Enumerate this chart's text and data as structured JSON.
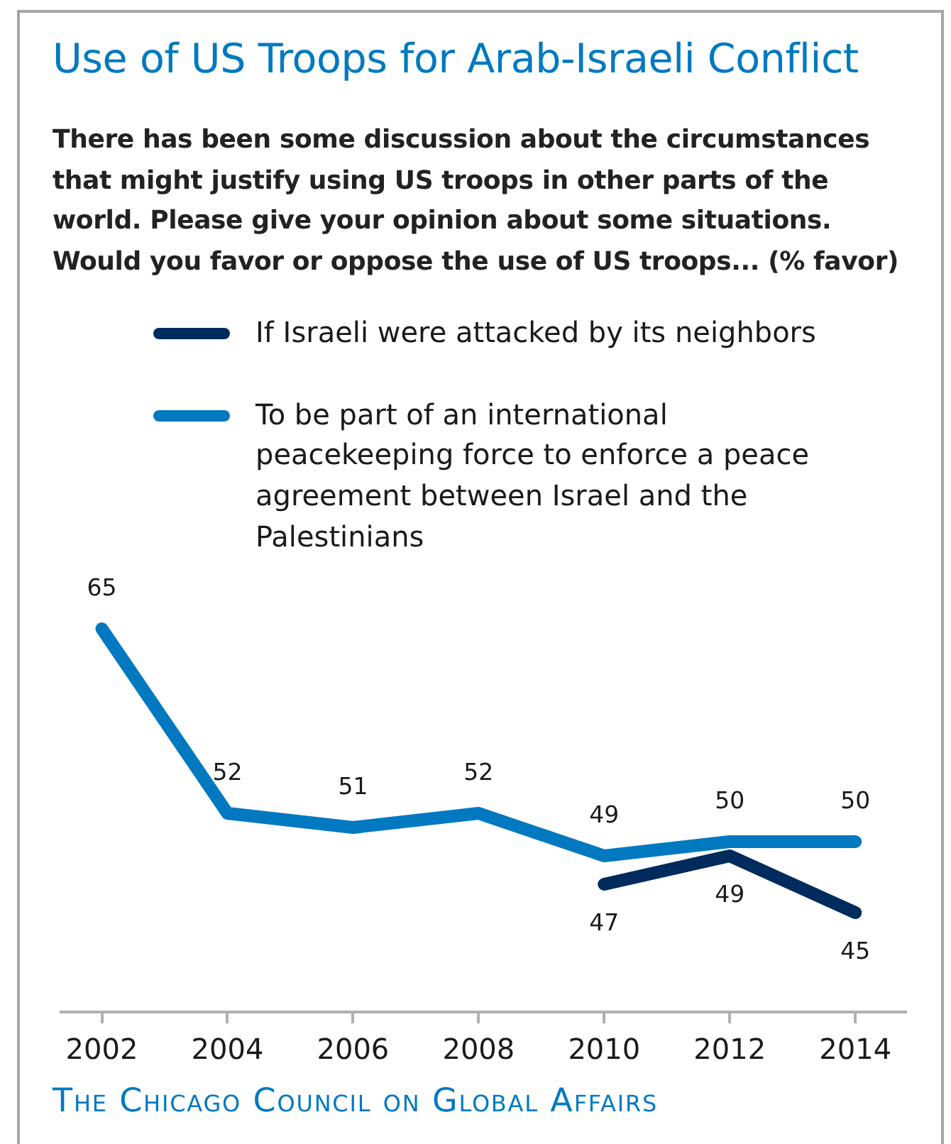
{
  "chart_data": {
    "type": "line",
    "title": "Use of US Troops for Arab-Israeli Conflict",
    "subtitle": "There has been some discussion about the circumstances that might justify using US troops in other parts of the world. Please give your opinion about some situations. Would you favor or oppose the use of US troops... (% favor)",
    "annotations": [
      "The Chicago Council on Global Affairs"
    ],
    "x": [
      2002,
      2004,
      2006,
      2008,
      2010,
      2012,
      2014
    ],
    "xlim": [
      2001.35,
      2014.8
    ],
    "xticks": [
      2002,
      2004,
      2006,
      2008,
      2010,
      2012,
      2014
    ],
    "tick_labels": "x",
    "series": [
      {
        "name": "If Israeli were attacked by its neighbors",
        "color": "#002b5c",
        "values": [
          null,
          null,
          null,
          null,
          47,
          49,
          45
        ]
      },
      {
        "name": "To be part of an international peacekeeping force to enforce a peace agreement between Israel and the Palestinians",
        "color": "#0079c1",
        "values": [
          65,
          52,
          51,
          52,
          49,
          50,
          50
        ]
      }
    ],
    "data_labels": true,
    "legend": "top",
    "marker": "none",
    "line_style": "solid"
  }
}
